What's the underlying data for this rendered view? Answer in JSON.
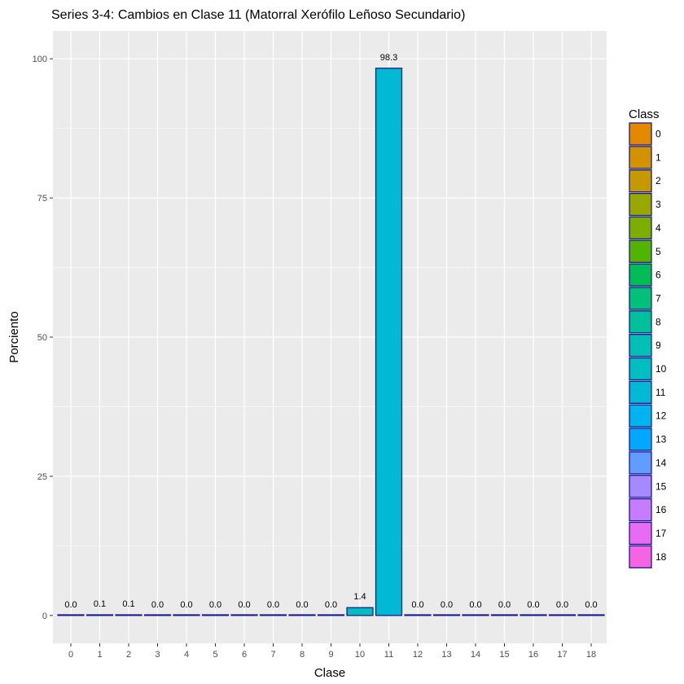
{
  "chart_data": {
    "type": "bar",
    "title": "Series 3-4: Cambios en Clase 11 (Matorral Xerófilo Leñoso Secundario)",
    "xlabel": "Clase",
    "ylabel": "Porciento",
    "ylim": [
      -5,
      105
    ],
    "yticks": [
      0,
      25,
      50,
      75,
      100
    ],
    "categories": [
      "0",
      "1",
      "2",
      "3",
      "4",
      "5",
      "6",
      "7",
      "8",
      "9",
      "10",
      "11",
      "12",
      "13",
      "14",
      "15",
      "16",
      "17",
      "18"
    ],
    "values": [
      0.0,
      0.1,
      0.1,
      0.0,
      0.0,
      0.0,
      0.0,
      0.0,
      0.0,
      0.0,
      1.4,
      98.3,
      0.0,
      0.0,
      0.0,
      0.0,
      0.0,
      0.0,
      0.0
    ],
    "labels": [
      "0.0",
      "0.1",
      "0.1",
      "0.0",
      "0.0",
      "0.0",
      "0.0",
      "0.0",
      "0.0",
      "0.0",
      "1.4",
      "98.3",
      "0.0",
      "0.0",
      "0.0",
      "0.0",
      "0.0",
      "0.0",
      "0.0"
    ],
    "grid": true,
    "bar_outline_color": "#1a1a8c",
    "panel_background": "#ebebeb",
    "legend": {
      "title": "Class",
      "position": "right",
      "entries": [
        "0",
        "1",
        "2",
        "3",
        "4",
        "5",
        "6",
        "7",
        "8",
        "9",
        "10",
        "11",
        "12",
        "13",
        "14",
        "15",
        "16",
        "17",
        "18"
      ],
      "colors": [
        "#e38900",
        "#d39200",
        "#c49a00",
        "#99a800",
        "#7cae00",
        "#53b400",
        "#00bc56",
        "#00c17a",
        "#00c19a",
        "#00bfb5",
        "#00bdc2",
        "#00b9d4",
        "#00b4ef",
        "#00a9ff",
        "#619cff",
        "#a58aff",
        "#c77cff",
        "#e76bf3",
        "#f564e3"
      ]
    }
  }
}
